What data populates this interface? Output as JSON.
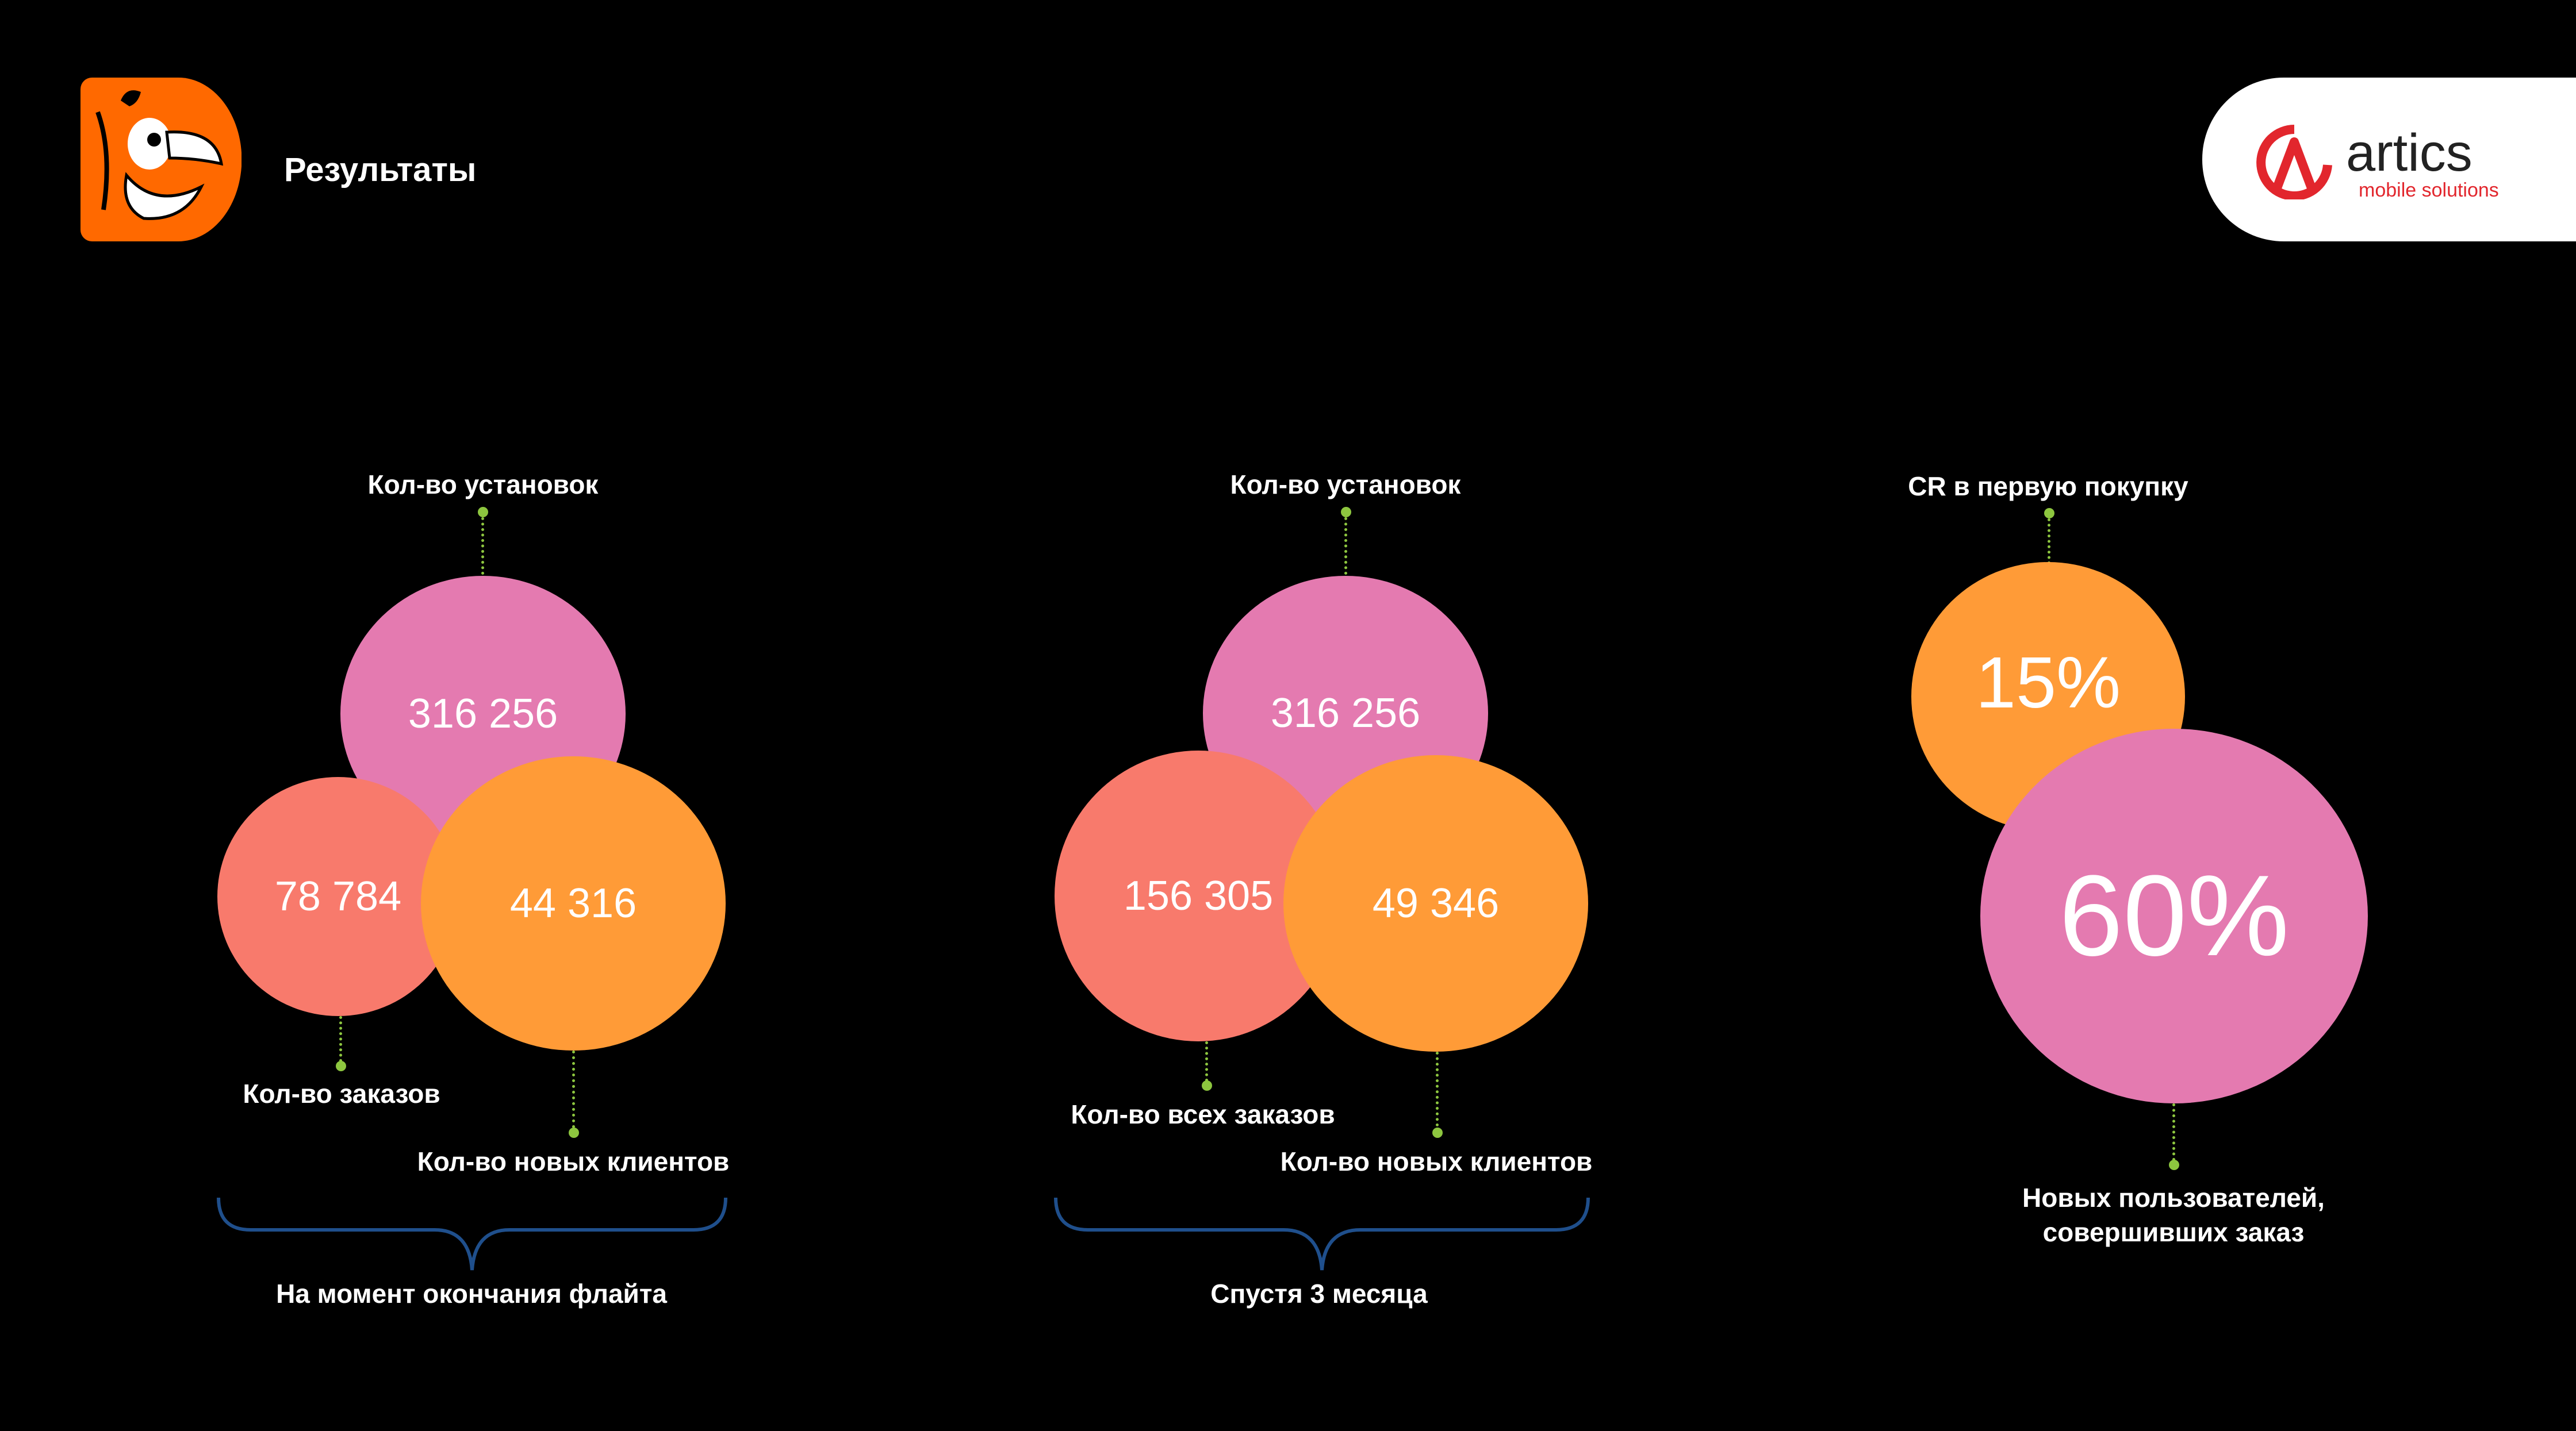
{
  "header": {
    "title": "Результаты",
    "artics_logo": {
      "name": "artics",
      "tagline": "mobile solutions"
    }
  },
  "colors": {
    "background": "#000000",
    "pink": "#e47ab0",
    "salmon": "#f87a6c",
    "orange": "#ff9b37",
    "dot_line": "#8dc63f",
    "brace": "#1f4f8c",
    "artics_red": "#e2262d"
  },
  "group1": {
    "installs_label": "Кол-во установок",
    "installs_value": "316 256",
    "orders_label": "Кол-во заказов",
    "orders_value": "78 784",
    "new_clients_label": "Кол-во новых клиентов",
    "new_clients_value": "44 316",
    "caption": "На момент окончания флайта"
  },
  "group2": {
    "installs_label": "Кол-во установок",
    "installs_value": "316 256",
    "orders_label": "Кол-во всех заказов",
    "orders_value": "156 305",
    "new_clients_label": "Кол-во новых клиентов",
    "new_clients_value": "49 346",
    "caption": "Спустя 3 месяца"
  },
  "group3": {
    "cr_label": "CR в первую покупку",
    "cr_value": "15%",
    "new_users_label_line1": "Новых пользователей,",
    "new_users_label_line2": "совершивших заказ",
    "new_users_value": "60%"
  }
}
